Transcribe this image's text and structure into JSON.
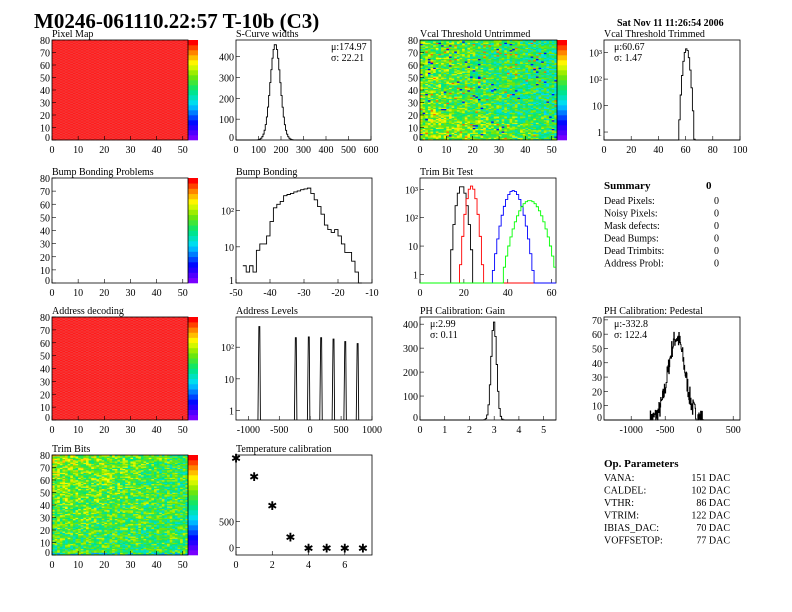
{
  "header": {
    "title": "M0246-061110.22:57 T-10b (C3)",
    "date": "Sat Nov 11 11:26:54 2006"
  },
  "summary": {
    "title": "Summary",
    "total": "0",
    "rows": [
      {
        "label": "Dead Pixels:",
        "value": "0"
      },
      {
        "label": "Noisy Pixels:",
        "value": "0"
      },
      {
        "label": "Mask defects:",
        "value": "0"
      },
      {
        "label": "Dead Bumps:",
        "value": "0"
      },
      {
        "label": "Dead Trimbits:",
        "value": "0"
      },
      {
        "label": "Address Probl:",
        "value": "0"
      }
    ]
  },
  "op_params": {
    "title": "Op. Parameters",
    "rows": [
      {
        "label": "VANA:",
        "value": "151 DAC"
      },
      {
        "label": "CALDEL:",
        "value": "102 DAC"
      },
      {
        "label": "VTHR:",
        "value": "86 DAC"
      },
      {
        "label": "VTRIM:",
        "value": "122 DAC"
      },
      {
        "label": "IBIAS_DAC:",
        "value": "70 DAC"
      },
      {
        "label": "VOFFSETOP:",
        "value": "77 DAC"
      }
    ]
  },
  "colors": {
    "line": "#000000",
    "red": "#ff0000",
    "blue": "#0000ff",
    "green": "#00ff00"
  },
  "chart_data": [
    {
      "id": "pixelmap",
      "type": "heatmap",
      "title": "Pixel Map",
      "xlim": [
        0,
        52
      ],
      "ylim": [
        0,
        80
      ],
      "xticks": [
        "0",
        "10",
        "20",
        "30",
        "40",
        "50"
      ],
      "yticks": [
        "0",
        "10",
        "20",
        "30",
        "40",
        "50",
        "60",
        "70",
        "80"
      ],
      "zlim": [
        0,
        10
      ],
      "fill_value": 10
    },
    {
      "id": "scurve",
      "type": "histogram",
      "title": "S-Curve widths",
      "xlim": [
        0,
        600
      ],
      "ylim": [
        0,
        480
      ],
      "xticks": [
        "0",
        "100",
        "200",
        "300",
        "400",
        "500",
        "600"
      ],
      "yticks": [
        "0",
        "100",
        "200",
        "300",
        "400"
      ],
      "mean": 174.97,
      "sigma": 22.21,
      "peak": 460,
      "stats": [
        "μ:174.97",
        "σ: 22.21"
      ]
    },
    {
      "id": "vcal_untrimmed",
      "type": "heatmap",
      "title": "Vcal Threshold Untrimmed",
      "xlim": [
        0,
        52
      ],
      "ylim": [
        0,
        80
      ],
      "xticks": [
        "0",
        "10",
        "20",
        "30",
        "40",
        "50"
      ],
      "yticks": [
        "0",
        "10",
        "20",
        "30",
        "40",
        "50",
        "60",
        "70",
        "80"
      ],
      "zlim": [
        70,
        120
      ]
    },
    {
      "id": "vcal_trimmed",
      "type": "histogram",
      "title": "Vcal Threshold Trimmed",
      "log": true,
      "xlim": [
        0,
        100
      ],
      "ylim": [
        0.5,
        3000
      ],
      "xticks": [
        "0",
        "20",
        "40",
        "60",
        "80",
        "100"
      ],
      "yticks": [
        "1",
        "10",
        "10²",
        "10³"
      ],
      "mean": 60.67,
      "sigma": 1.47,
      "peak": 1400,
      "stats": [
        "μ:60.67",
        "σ: 1.47"
      ]
    },
    {
      "id": "bump_problems",
      "type": "heatmap",
      "title": "Bump Bonding Problems",
      "xlim": [
        0,
        52
      ],
      "ylim": [
        0,
        80
      ],
      "xticks": [
        "0",
        "10",
        "20",
        "30",
        "40",
        "50"
      ],
      "yticks": [
        "0",
        "10",
        "20",
        "30",
        "40",
        "50",
        "60",
        "70",
        "80"
      ],
      "empty": true
    },
    {
      "id": "bump_bonding",
      "type": "histogram",
      "title": "Bump Bonding",
      "log": true,
      "xlim": [
        -50,
        -10
      ],
      "ylim": [
        1,
        800
      ],
      "xticks": [
        "-50",
        "-40",
        "-30",
        "-20",
        "-10"
      ],
      "yticks": [
        "1",
        "10",
        "10²"
      ],
      "bins_x": [
        -48,
        -47,
        -46,
        -45,
        -44,
        -43,
        -42,
        -41,
        -40,
        -39,
        -38,
        -37,
        -36,
        -35,
        -34,
        -33,
        -32,
        -31,
        -30,
        -29,
        -28,
        -27,
        -26,
        -25,
        -24,
        -23,
        -22,
        -21,
        -20,
        -19,
        -18,
        -17,
        -16,
        -15,
        -14
      ],
      "values": [
        3,
        2,
        3,
        2,
        8,
        12,
        12,
        20,
        50,
        120,
        150,
        180,
        260,
        280,
        300,
        330,
        350,
        380,
        400,
        420,
        300,
        200,
        130,
        80,
        40,
        30,
        25,
        30,
        20,
        12,
        7,
        7,
        4,
        2,
        1
      ]
    },
    {
      "id": "trim_bit_test",
      "type": "histogram",
      "title": "Trim Bit Test",
      "log": true,
      "xlim": [
        0,
        62
      ],
      "ylim": [
        0.5,
        2500
      ],
      "xticks": [
        "0",
        "20",
        "40",
        "60"
      ],
      "yticks": [
        "1",
        "10",
        "10²",
        "10³"
      ],
      "series": [
        {
          "color": "#000000",
          "mean": 19,
          "sigma": 1.4,
          "peak": 1300
        },
        {
          "color": "#ff0000",
          "mean": 23.5,
          "sigma": 1.4,
          "peak": 1300
        },
        {
          "color": "#0000ff",
          "mean": 42.5,
          "sigma": 2.5,
          "peak": 900
        },
        {
          "color": "#00ff00",
          "mean": 50,
          "sigma": 3.5,
          "peak": 400
        }
      ]
    },
    {
      "id": "address_decoding",
      "type": "heatmap",
      "title": "Address decoding",
      "xlim": [
        0,
        52
      ],
      "ylim": [
        0,
        80
      ],
      "xticks": [
        "0",
        "10",
        "20",
        "30",
        "40",
        "50"
      ],
      "yticks": [
        "0",
        "10",
        "20",
        "30",
        "40",
        "50",
        "60",
        "70",
        "80"
      ],
      "fill_value": 1
    },
    {
      "id": "address_levels",
      "type": "histogram",
      "title": "Address Levels",
      "log": true,
      "xlim": [
        -1200,
        1000
      ],
      "ylim": [
        0.5,
        900
      ],
      "xticks": [
        "-1000",
        "-500",
        "0",
        "500",
        "1000"
      ],
      "yticks": [
        "1",
        "10",
        "10²"
      ],
      "peaks_x": [
        -820,
        -230,
        -20,
        180,
        380,
        570,
        770
      ],
      "peaks_y": [
        450,
        200,
        210,
        200,
        180,
        150,
        130
      ]
    },
    {
      "id": "ph_gain",
      "type": "histogram",
      "title": "PH Calibration: Gain",
      "xlim": [
        0,
        5.5
      ],
      "ylim": [
        0,
        430
      ],
      "xticks": [
        "0",
        "1",
        "2",
        "3",
        "4",
        "5"
      ],
      "yticks": [
        "0",
        "100",
        "200",
        "300",
        "400"
      ],
      "mean": 2.99,
      "sigma": 0.11,
      "peak": 410,
      "stats": [
        "μ:2.99",
        "σ: 0.11"
      ]
    },
    {
      "id": "ph_pedestal",
      "type": "histogram",
      "title": "PH Calibration: Pedestal",
      "xlim": [
        -1400,
        600
      ],
      "ylim": [
        0,
        72
      ],
      "xticks": [
        "-1000",
        "-500",
        "0",
        "500"
      ],
      "yticks": [
        "0",
        "10",
        "20",
        "30",
        "40",
        "50",
        "60",
        "70"
      ],
      "mean": -332.8,
      "sigma": 122.4,
      "peak": 58,
      "stats": [
        "μ:-332.8",
        "σ: 122.4"
      ]
    },
    {
      "id": "trim_bits",
      "type": "heatmap",
      "title": "Trim Bits",
      "xlim": [
        0,
        52
      ],
      "ylim": [
        0,
        80
      ],
      "xticks": [
        "0",
        "10",
        "20",
        "30",
        "40",
        "50"
      ],
      "yticks": [
        "0",
        "10",
        "20",
        "30",
        "40",
        "50",
        "60",
        "70",
        "80"
      ],
      "zlim": [
        0,
        15
      ]
    },
    {
      "id": "temperature",
      "type": "scatter",
      "title": "Temperature calibration",
      "xlim": [
        0,
        7.5
      ],
      "ylim": [
        -150,
        1800
      ],
      "xticks": [
        "0",
        "2",
        "4",
        "6"
      ],
      "xtick_vals": [
        0,
        2,
        4,
        6
      ],
      "yticks": [
        "0",
        "500"
      ],
      "ytick_vals": [
        0,
        500
      ],
      "x": [
        0,
        1,
        2,
        3,
        4,
        5,
        6,
        7
      ],
      "y": [
        1730,
        1375,
        810,
        190,
        -20,
        -20,
        -20,
        -20
      ]
    }
  ]
}
